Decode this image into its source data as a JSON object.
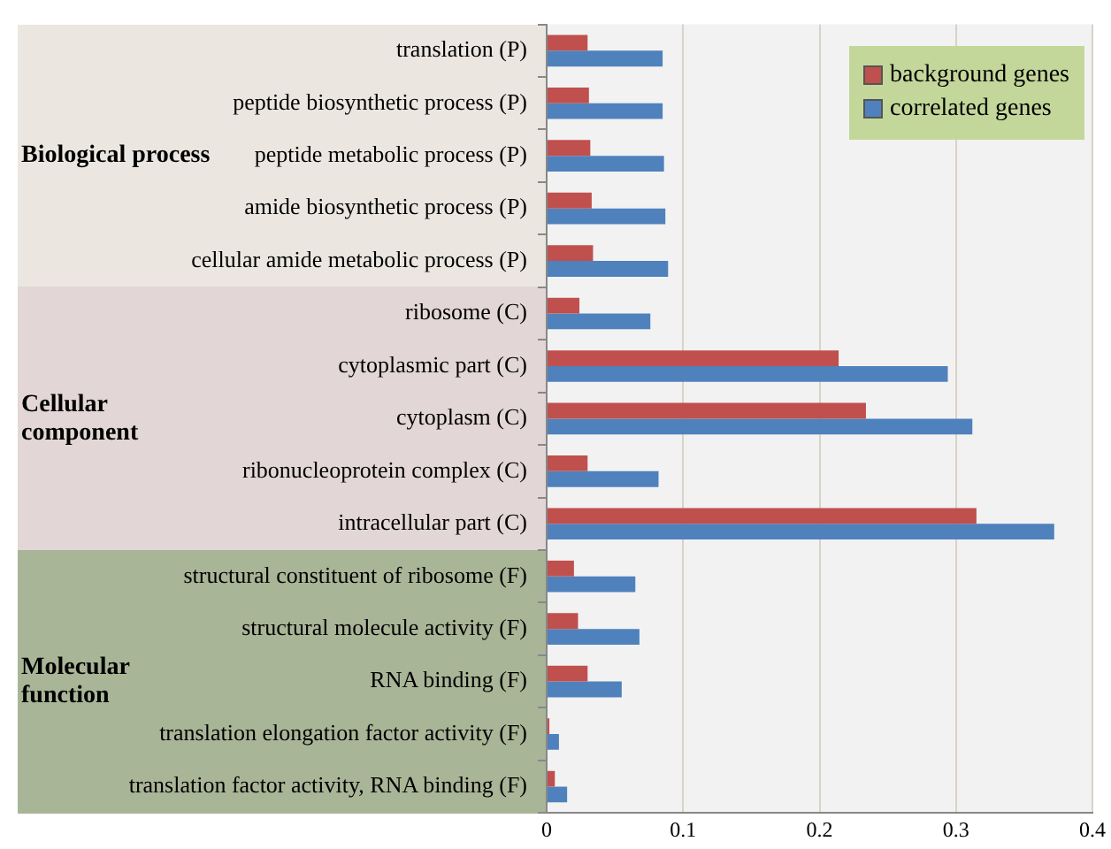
{
  "chart_data": {
    "type": "bar",
    "orientation": "horizontal",
    "categories": [
      "translation (P)",
      "peptide biosynthetic process (P)",
      "peptide metabolic process (P)",
      "amide biosynthetic process (P)",
      "cellular amide metabolic process (P)",
      "ribosome (C)",
      "cytoplasmic part (C)",
      "cytoplasm (C)",
      "ribonucleoprotein complex (C)",
      "intracellular part (C)",
      "structural constituent of ribosome (F)",
      "structural molecule activity (F)",
      "RNA binding (F)",
      "translation elongation factor activity (F)",
      "translation factor activity, RNA binding (F)"
    ],
    "series": [
      {
        "name": "background genes",
        "color": "#c0504d",
        "values": [
          0.03,
          0.031,
          0.032,
          0.033,
          0.034,
          0.024,
          0.214,
          0.234,
          0.03,
          0.315,
          0.02,
          0.023,
          0.03,
          0.002,
          0.006
        ]
      },
      {
        "name": "correlated genes",
        "color": "#4f81bd",
        "values": [
          0.085,
          0.085,
          0.086,
          0.087,
          0.089,
          0.076,
          0.294,
          0.312,
          0.082,
          0.372,
          0.065,
          0.068,
          0.055,
          0.009,
          0.015
        ]
      }
    ],
    "xlim": [
      0,
      0.4
    ],
    "xticks": [
      0,
      0.1,
      0.2,
      0.3,
      0.4
    ],
    "grid": "x",
    "legend": "top right",
    "annotations": [
      "Biological process",
      "Cellular component",
      "Molecular function"
    ]
  }
}
